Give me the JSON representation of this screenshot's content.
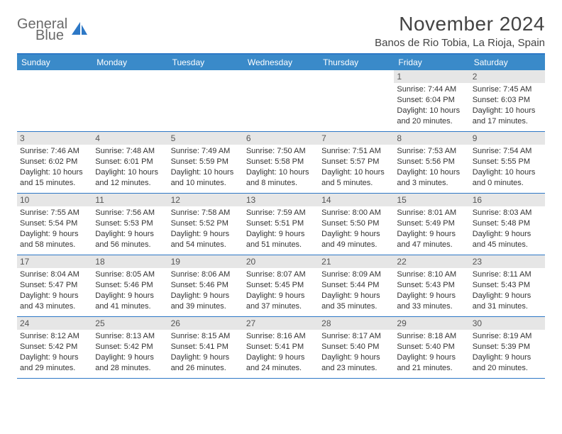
{
  "logo": {
    "line1": "General",
    "line2": "Blue"
  },
  "title": "November 2024",
  "location": "Banos de Rio Tobia, La Rioja, Spain",
  "colors": {
    "header_bg": "#3a8ac9",
    "header_border": "#2d78c6",
    "daynum_bg": "#e6e6e6",
    "text": "#333333"
  },
  "weekdays": [
    "Sunday",
    "Monday",
    "Tuesday",
    "Wednesday",
    "Thursday",
    "Friday",
    "Saturday"
  ],
  "weeks": [
    [
      {
        "n": "",
        "sr": "",
        "ss": "",
        "dl": ""
      },
      {
        "n": "",
        "sr": "",
        "ss": "",
        "dl": ""
      },
      {
        "n": "",
        "sr": "",
        "ss": "",
        "dl": ""
      },
      {
        "n": "",
        "sr": "",
        "ss": "",
        "dl": ""
      },
      {
        "n": "",
        "sr": "",
        "ss": "",
        "dl": ""
      },
      {
        "n": "1",
        "sr": "Sunrise: 7:44 AM",
        "ss": "Sunset: 6:04 PM",
        "dl": "Daylight: 10 hours and 20 minutes."
      },
      {
        "n": "2",
        "sr": "Sunrise: 7:45 AM",
        "ss": "Sunset: 6:03 PM",
        "dl": "Daylight: 10 hours and 17 minutes."
      }
    ],
    [
      {
        "n": "3",
        "sr": "Sunrise: 7:46 AM",
        "ss": "Sunset: 6:02 PM",
        "dl": "Daylight: 10 hours and 15 minutes."
      },
      {
        "n": "4",
        "sr": "Sunrise: 7:48 AM",
        "ss": "Sunset: 6:01 PM",
        "dl": "Daylight: 10 hours and 12 minutes."
      },
      {
        "n": "5",
        "sr": "Sunrise: 7:49 AM",
        "ss": "Sunset: 5:59 PM",
        "dl": "Daylight: 10 hours and 10 minutes."
      },
      {
        "n": "6",
        "sr": "Sunrise: 7:50 AM",
        "ss": "Sunset: 5:58 PM",
        "dl": "Daylight: 10 hours and 8 minutes."
      },
      {
        "n": "7",
        "sr": "Sunrise: 7:51 AM",
        "ss": "Sunset: 5:57 PM",
        "dl": "Daylight: 10 hours and 5 minutes."
      },
      {
        "n": "8",
        "sr": "Sunrise: 7:53 AM",
        "ss": "Sunset: 5:56 PM",
        "dl": "Daylight: 10 hours and 3 minutes."
      },
      {
        "n": "9",
        "sr": "Sunrise: 7:54 AM",
        "ss": "Sunset: 5:55 PM",
        "dl": "Daylight: 10 hours and 0 minutes."
      }
    ],
    [
      {
        "n": "10",
        "sr": "Sunrise: 7:55 AM",
        "ss": "Sunset: 5:54 PM",
        "dl": "Daylight: 9 hours and 58 minutes."
      },
      {
        "n": "11",
        "sr": "Sunrise: 7:56 AM",
        "ss": "Sunset: 5:53 PM",
        "dl": "Daylight: 9 hours and 56 minutes."
      },
      {
        "n": "12",
        "sr": "Sunrise: 7:58 AM",
        "ss": "Sunset: 5:52 PM",
        "dl": "Daylight: 9 hours and 54 minutes."
      },
      {
        "n": "13",
        "sr": "Sunrise: 7:59 AM",
        "ss": "Sunset: 5:51 PM",
        "dl": "Daylight: 9 hours and 51 minutes."
      },
      {
        "n": "14",
        "sr": "Sunrise: 8:00 AM",
        "ss": "Sunset: 5:50 PM",
        "dl": "Daylight: 9 hours and 49 minutes."
      },
      {
        "n": "15",
        "sr": "Sunrise: 8:01 AM",
        "ss": "Sunset: 5:49 PM",
        "dl": "Daylight: 9 hours and 47 minutes."
      },
      {
        "n": "16",
        "sr": "Sunrise: 8:03 AM",
        "ss": "Sunset: 5:48 PM",
        "dl": "Daylight: 9 hours and 45 minutes."
      }
    ],
    [
      {
        "n": "17",
        "sr": "Sunrise: 8:04 AM",
        "ss": "Sunset: 5:47 PM",
        "dl": "Daylight: 9 hours and 43 minutes."
      },
      {
        "n": "18",
        "sr": "Sunrise: 8:05 AM",
        "ss": "Sunset: 5:46 PM",
        "dl": "Daylight: 9 hours and 41 minutes."
      },
      {
        "n": "19",
        "sr": "Sunrise: 8:06 AM",
        "ss": "Sunset: 5:46 PM",
        "dl": "Daylight: 9 hours and 39 minutes."
      },
      {
        "n": "20",
        "sr": "Sunrise: 8:07 AM",
        "ss": "Sunset: 5:45 PM",
        "dl": "Daylight: 9 hours and 37 minutes."
      },
      {
        "n": "21",
        "sr": "Sunrise: 8:09 AM",
        "ss": "Sunset: 5:44 PM",
        "dl": "Daylight: 9 hours and 35 minutes."
      },
      {
        "n": "22",
        "sr": "Sunrise: 8:10 AM",
        "ss": "Sunset: 5:43 PM",
        "dl": "Daylight: 9 hours and 33 minutes."
      },
      {
        "n": "23",
        "sr": "Sunrise: 8:11 AM",
        "ss": "Sunset: 5:43 PM",
        "dl": "Daylight: 9 hours and 31 minutes."
      }
    ],
    [
      {
        "n": "24",
        "sr": "Sunrise: 8:12 AM",
        "ss": "Sunset: 5:42 PM",
        "dl": "Daylight: 9 hours and 29 minutes."
      },
      {
        "n": "25",
        "sr": "Sunrise: 8:13 AM",
        "ss": "Sunset: 5:42 PM",
        "dl": "Daylight: 9 hours and 28 minutes."
      },
      {
        "n": "26",
        "sr": "Sunrise: 8:15 AM",
        "ss": "Sunset: 5:41 PM",
        "dl": "Daylight: 9 hours and 26 minutes."
      },
      {
        "n": "27",
        "sr": "Sunrise: 8:16 AM",
        "ss": "Sunset: 5:41 PM",
        "dl": "Daylight: 9 hours and 24 minutes."
      },
      {
        "n": "28",
        "sr": "Sunrise: 8:17 AM",
        "ss": "Sunset: 5:40 PM",
        "dl": "Daylight: 9 hours and 23 minutes."
      },
      {
        "n": "29",
        "sr": "Sunrise: 8:18 AM",
        "ss": "Sunset: 5:40 PM",
        "dl": "Daylight: 9 hours and 21 minutes."
      },
      {
        "n": "30",
        "sr": "Sunrise: 8:19 AM",
        "ss": "Sunset: 5:39 PM",
        "dl": "Daylight: 9 hours and 20 minutes."
      }
    ]
  ]
}
